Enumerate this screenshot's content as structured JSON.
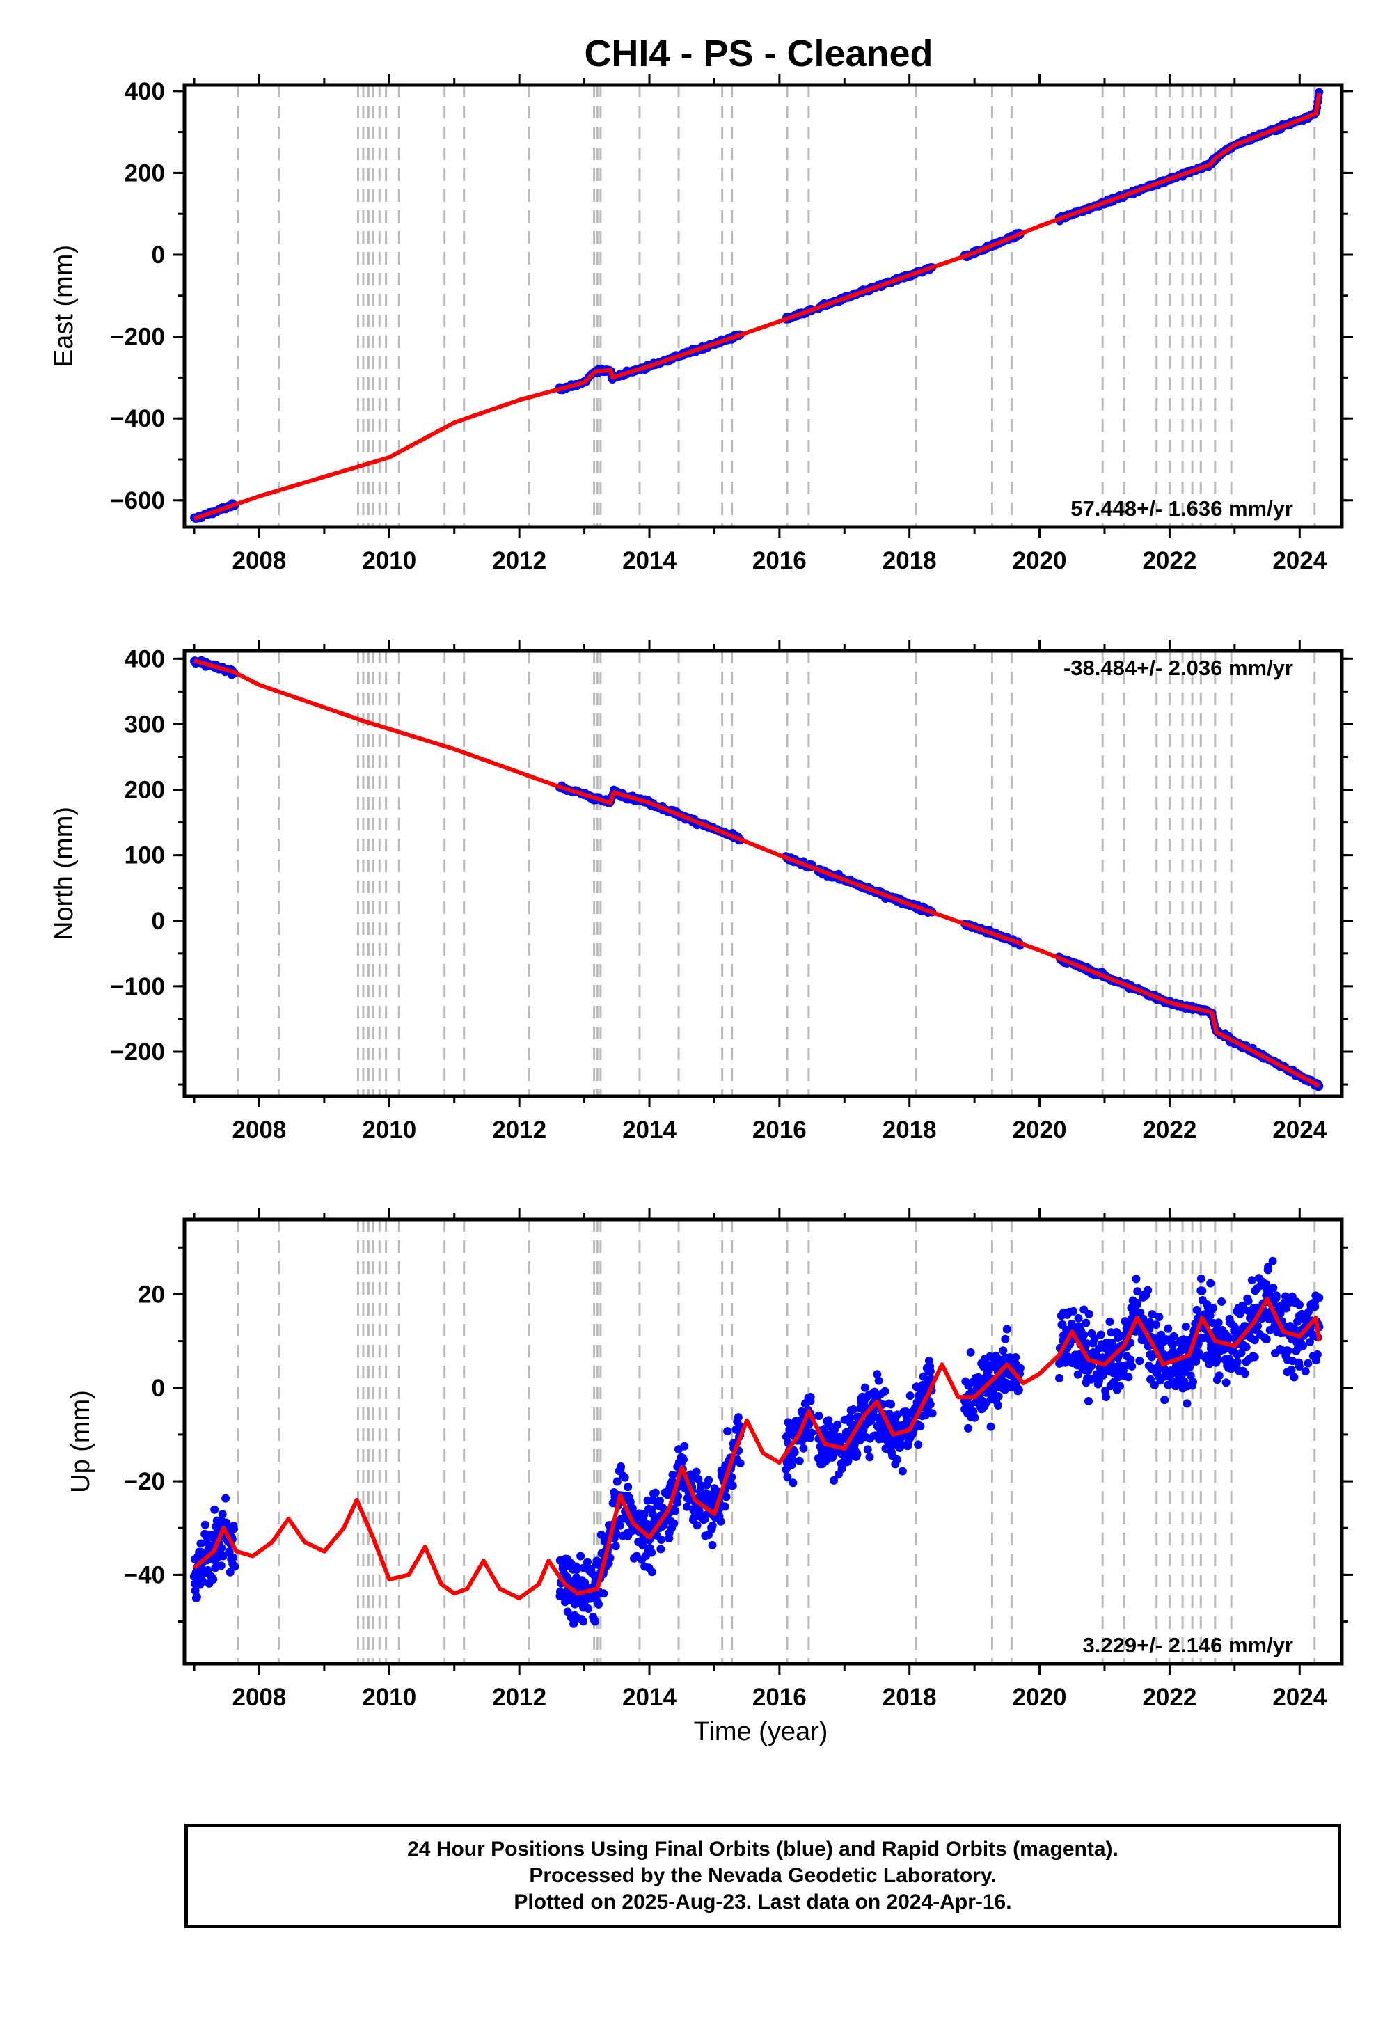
{
  "title": "CHI4  - PS - Cleaned",
  "xlabel": "Time (year)",
  "footer": {
    "line1": "24 Hour Positions Using Final Orbits (blue) and Rapid Orbits (magenta).",
    "line2": "Processed by the Nevada Geodetic Laboratory.",
    "line3": "Plotted on 2025-Aug-23. Last data on 2024-Apr-16."
  },
  "colors": {
    "data": "#0000ff",
    "model": "#ff0000",
    "event_lines": "#bbbbbb",
    "frame": "#000000"
  },
  "chart_data": [
    {
      "type": "scatter",
      "panel": "east",
      "ylabel": "East (mm)",
      "xlim": [
        2006.85,
        2024.65
      ],
      "ylim": [
        -665,
        415
      ],
      "yticks": [
        -600,
        -400,
        -200,
        0,
        200,
        400
      ],
      "xticks": [
        2008,
        2010,
        2012,
        2014,
        2016,
        2018,
        2020,
        2022,
        2024
      ],
      "rate": "57.448+/- 1.636 mm/yr",
      "rate_position": "bottom-right",
      "vertical_dashed_lines": true,
      "data_segments": [
        [
          2007.0,
          2007.62
        ],
        [
          2012.62,
          2015.4
        ],
        [
          2016.1,
          2016.5
        ],
        [
          2016.6,
          2018.35
        ],
        [
          2018.85,
          2019.7
        ],
        [
          2020.3,
          2024.3
        ]
      ],
      "model_points": [
        [
          2007.0,
          -645
        ],
        [
          2008.0,
          -590
        ],
        [
          2010.0,
          -495
        ],
        [
          2011.0,
          -410
        ],
        [
          2012.0,
          -355
        ],
        [
          2013.0,
          -312
        ],
        [
          2013.17,
          -285
        ],
        [
          2013.4,
          -282
        ],
        [
          2013.43,
          -300
        ],
        [
          2014.0,
          -272
        ],
        [
          2016.0,
          -163
        ],
        [
          2018.0,
          -50
        ],
        [
          2019.0,
          5
        ],
        [
          2020.0,
          70
        ],
        [
          2022.0,
          185
        ],
        [
          2022.62,
          220
        ],
        [
          2022.72,
          238
        ],
        [
          2023.0,
          268
        ],
        [
          2024.25,
          345
        ],
        [
          2024.3,
          395
        ]
      ]
    },
    {
      "type": "scatter",
      "panel": "north",
      "ylabel": "North (mm)",
      "xlim": [
        2006.85,
        2024.65
      ],
      "ylim": [
        -268,
        412
      ],
      "yticks": [
        -200,
        -100,
        0,
        100,
        200,
        300,
        400
      ],
      "xticks": [
        2008,
        2010,
        2012,
        2014,
        2016,
        2018,
        2020,
        2022,
        2024
      ],
      "rate": "-38.484+/- 2.036 mm/yr",
      "rate_position": "top-right",
      "vertical_dashed_lines": true,
      "data_segments": [
        [
          2007.0,
          2007.62
        ],
        [
          2012.62,
          2015.4
        ],
        [
          2016.1,
          2016.5
        ],
        [
          2016.6,
          2018.35
        ],
        [
          2018.85,
          2019.7
        ],
        [
          2020.3,
          2024.3
        ]
      ],
      "model_points": [
        [
          2007.0,
          397
        ],
        [
          2007.6,
          380
        ],
        [
          2008.0,
          360
        ],
        [
          2009.6,
          305
        ],
        [
          2011.0,
          262
        ],
        [
          2012.6,
          205
        ],
        [
          2013.4,
          180
        ],
        [
          2013.45,
          196
        ],
        [
          2014.0,
          180
        ],
        [
          2016.0,
          100
        ],
        [
          2018.0,
          25
        ],
        [
          2020.0,
          -45
        ],
        [
          2022.0,
          -125
        ],
        [
          2022.65,
          -140
        ],
        [
          2022.72,
          -170
        ],
        [
          2024.3,
          -252
        ]
      ]
    },
    {
      "type": "scatter",
      "panel": "up",
      "ylabel": "Up (mm)",
      "xlim": [
        2006.85,
        2024.65
      ],
      "ylim": [
        -59,
        36
      ],
      "yticks": [
        -40,
        -20,
        0,
        20
      ],
      "xticks": [
        2008,
        2010,
        2012,
        2014,
        2016,
        2018,
        2020,
        2022,
        2024
      ],
      "rate": "3.229+/- 2.146 mm/yr",
      "rate_position": "bottom-right",
      "vertical_dashed_lines": true,
      "data_segments": [
        [
          2007.0,
          2007.62
        ],
        [
          2012.62,
          2015.4
        ],
        [
          2016.1,
          2016.5
        ],
        [
          2016.6,
          2018.35
        ],
        [
          2018.85,
          2019.7
        ],
        [
          2020.3,
          2024.3
        ]
      ],
      "model_points": [
        [
          2007.0,
          -38.5
        ],
        [
          2007.3,
          -35
        ],
        [
          2007.45,
          -30
        ],
        [
          2007.65,
          -35
        ],
        [
          2007.9,
          -36
        ],
        [
          2008.2,
          -33
        ],
        [
          2008.45,
          -28
        ],
        [
          2008.7,
          -33
        ],
        [
          2009.0,
          -35
        ],
        [
          2009.3,
          -30
        ],
        [
          2009.5,
          -24
        ],
        [
          2009.75,
          -32
        ],
        [
          2010.0,
          -41
        ],
        [
          2010.3,
          -40
        ],
        [
          2010.55,
          -34
        ],
        [
          2010.8,
          -42
        ],
        [
          2011.0,
          -44
        ],
        [
          2011.2,
          -43
        ],
        [
          2011.45,
          -37
        ],
        [
          2011.7,
          -43
        ],
        [
          2012.0,
          -45
        ],
        [
          2012.3,
          -42
        ],
        [
          2012.45,
          -37
        ],
        [
          2012.7,
          -42
        ],
        [
          2012.9,
          -44
        ],
        [
          2013.2,
          -43
        ],
        [
          2013.4,
          -32
        ],
        [
          2013.55,
          -23
        ],
        [
          2013.75,
          -29
        ],
        [
          2014.0,
          -32
        ],
        [
          2014.3,
          -26
        ],
        [
          2014.5,
          -17
        ],
        [
          2014.7,
          -24
        ],
        [
          2015.0,
          -27
        ],
        [
          2015.3,
          -14
        ],
        [
          2015.5,
          -7
        ],
        [
          2015.75,
          -14
        ],
        [
          2016.0,
          -16
        ],
        [
          2016.3,
          -10
        ],
        [
          2016.45,
          -5
        ],
        [
          2016.7,
          -12
        ],
        [
          2017.0,
          -13
        ],
        [
          2017.3,
          -6
        ],
        [
          2017.5,
          -3
        ],
        [
          2017.75,
          -10
        ],
        [
          2018.0,
          -9
        ],
        [
          2018.3,
          -1
        ],
        [
          2018.5,
          5
        ],
        [
          2018.75,
          -2
        ],
        [
          2019.0,
          -2
        ],
        [
          2019.3,
          2
        ],
        [
          2019.5,
          5
        ],
        [
          2019.75,
          1
        ],
        [
          2020.0,
          3
        ],
        [
          2020.3,
          7
        ],
        [
          2020.5,
          12
        ],
        [
          2020.75,
          6
        ],
        [
          2021.0,
          5
        ],
        [
          2021.3,
          9
        ],
        [
          2021.5,
          15
        ],
        [
          2021.75,
          9
        ],
        [
          2021.9,
          5
        ],
        [
          2022.3,
          7
        ],
        [
          2022.5,
          15
        ],
        [
          2022.7,
          10
        ],
        [
          2023.0,
          9
        ],
        [
          2023.3,
          14
        ],
        [
          2023.5,
          19
        ],
        [
          2023.75,
          12
        ],
        [
          2024.0,
          11
        ],
        [
          2024.25,
          15
        ],
        [
          2024.3,
          10
        ]
      ]
    }
  ],
  "event_years": [
    2007.67,
    2008.3,
    2009.52,
    2009.6,
    2009.68,
    2009.75,
    2009.85,
    2009.95,
    2010.15,
    2010.85,
    2011.15,
    2012.15,
    2013.15,
    2013.2,
    2013.25,
    2013.85,
    2014.45,
    2015.12,
    2015.27,
    2016.12,
    2016.45,
    2018.1,
    2019.27,
    2019.57,
    2020.97,
    2021.3,
    2021.8,
    2022.0,
    2022.2,
    2022.35,
    2022.48,
    2022.7,
    2022.95,
    2024.23
  ]
}
